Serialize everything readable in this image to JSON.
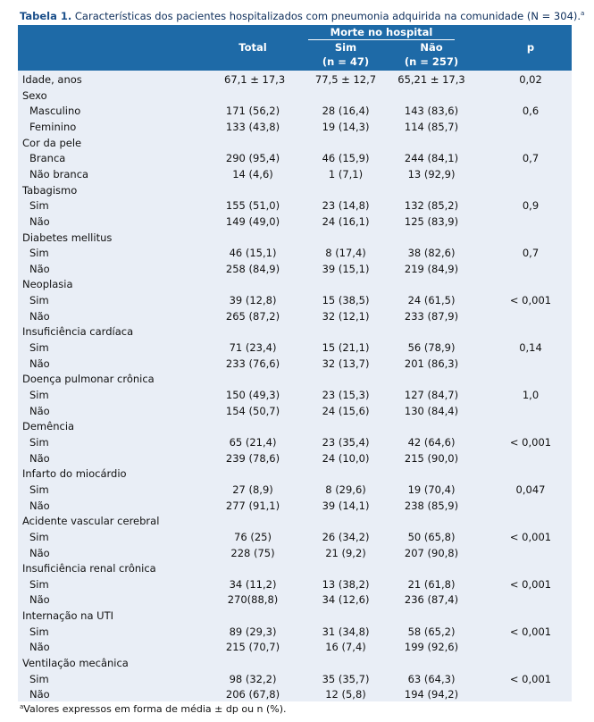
{
  "caption": {
    "label": "Tabela 1.",
    "text": " Características dos pacientes hospitalizados com pneumonia adquirida na comunidade (N = 304).",
    "mark": "a"
  },
  "header": {
    "group": "Morte no hospital",
    "total": "Total",
    "sim": "Sim",
    "sim_n": "(n  =  47)",
    "nao": "Não",
    "nao_n": "(n  =  257)",
    "p": "p"
  },
  "rows": [
    {
      "label": "Idade, anos",
      "total": "67,1 ± 17,3",
      "sim": "77,5 ± 12,7",
      "nao": "65,21 ± 17,3",
      "p": "0,02",
      "indent": false
    },
    {
      "label": "Sexo",
      "total": "",
      "sim": "",
      "nao": "",
      "p": "",
      "indent": false
    },
    {
      "label": "Masculino",
      "total": "171 (56,2)",
      "sim": "28 (16,4)",
      "nao": "143 (83,6)",
      "p": "0,6",
      "indent": true
    },
    {
      "label": "Feminino",
      "total": "133 (43,8)",
      "sim": "19 (14,3)",
      "nao": "114 (85,7)",
      "p": "",
      "indent": true
    },
    {
      "label": "Cor da pele",
      "total": "",
      "sim": "",
      "nao": "",
      "p": "",
      "indent": false
    },
    {
      "label": "Branca",
      "total": "290 (95,4)",
      "sim": "46 (15,9)",
      "nao": "244 (84,1)",
      "p": "0,7",
      "indent": true
    },
    {
      "label": "Não branca",
      "total": "14 (4,6)",
      "sim": "1 (7,1)",
      "nao": "13 (92,9)",
      "p": "",
      "indent": true
    },
    {
      "label": "Tabagismo",
      "total": "",
      "sim": "",
      "nao": "",
      "p": "",
      "indent": false
    },
    {
      "label": "Sim",
      "total": "155 (51,0)",
      "sim": "23 (14,8)",
      "nao": "132 (85,2)",
      "p": "0,9",
      "indent": true
    },
    {
      "label": "Não",
      "total": "149 (49,0)",
      "sim": "24 (16,1)",
      "nao": "125 (83,9)",
      "p": "",
      "indent": true
    },
    {
      "label": "Diabetes mellitus",
      "total": "",
      "sim": "",
      "nao": "",
      "p": "",
      "indent": false
    },
    {
      "label": "Sim",
      "total": "46 (15,1)",
      "sim": "8 (17,4)",
      "nao": "38 (82,6)",
      "p": "0,7",
      "indent": true
    },
    {
      "label": "Não",
      "total": "258 (84,9)",
      "sim": "39 (15,1)",
      "nao": "219 (84,9)",
      "p": "",
      "indent": true
    },
    {
      "label": "Neoplasia",
      "total": "",
      "sim": "",
      "nao": "",
      "p": "",
      "indent": false
    },
    {
      "label": "Sim",
      "total": "39 (12,8)",
      "sim": "15 (38,5)",
      "nao": "24 (61,5)",
      "p": "< 0,001",
      "indent": true
    },
    {
      "label": "Não",
      "total": "265 (87,2)",
      "sim": "32 (12,1)",
      "nao": "233 (87,9)",
      "p": "",
      "indent": true
    },
    {
      "label": "Insuficiência cardíaca",
      "total": "",
      "sim": "",
      "nao": "",
      "p": "",
      "indent": false
    },
    {
      "label": "Sim",
      "total": "71 (23,4)",
      "sim": "15 (21,1)",
      "nao": "56 (78,9)",
      "p": "0,14",
      "indent": true
    },
    {
      "label": "Não",
      "total": "233 (76,6)",
      "sim": "32 (13,7)",
      "nao": "201 (86,3)",
      "p": "",
      "indent": true
    },
    {
      "label": "Doença pulmonar crônica",
      "total": "",
      "sim": "",
      "nao": "",
      "p": "",
      "indent": false
    },
    {
      "label": "Sim",
      "total": "150 (49,3)",
      "sim": "23 (15,3)",
      "nao": "127 (84,7)",
      "p": "1,0",
      "indent": true
    },
    {
      "label": "Não",
      "total": "154 (50,7)",
      "sim": "24 (15,6)",
      "nao": "130 (84,4)",
      "p": "",
      "indent": true
    },
    {
      "label": "Demência",
      "total": "",
      "sim": "",
      "nao": "",
      "p": "",
      "indent": false
    },
    {
      "label": "Sim",
      "total": "65 (21,4)",
      "sim": "23 (35,4)",
      "nao": "42 (64,6)",
      "p": "< 0,001",
      "indent": true
    },
    {
      "label": "Não",
      "total": "239 (78,6)",
      "sim": "24 (10,0)",
      "nao": "215 (90,0)",
      "p": "",
      "indent": true
    },
    {
      "label": "Infarto do miocárdio",
      "total": "",
      "sim": "",
      "nao": "",
      "p": "",
      "indent": false
    },
    {
      "label": "Sim",
      "total": "27 (8,9)",
      "sim": "8 (29,6)",
      "nao": "19 (70,4)",
      "p": "0,047",
      "indent": true
    },
    {
      "label": "Não",
      "total": "277 (91,1)",
      "sim": "39 (14,1)",
      "nao": "238 (85,9)",
      "p": "",
      "indent": true
    },
    {
      "label": "Acidente vascular cerebral",
      "total": "",
      "sim": "",
      "nao": "",
      "p": "",
      "indent": false
    },
    {
      "label": "Sim",
      "total": "76 (25)",
      "sim": "26 (34,2)",
      "nao": "50 (65,8)",
      "p": "< 0,001",
      "indent": true
    },
    {
      "label": "Não",
      "total": "228 (75)",
      "sim": "21 (9,2)",
      "nao": "207 (90,8)",
      "p": "",
      "indent": true
    },
    {
      "label": "Insuficiência renal crônica",
      "total": "",
      "sim": "",
      "nao": "",
      "p": "",
      "indent": false
    },
    {
      "label": "Sim",
      "total": "34 (11,2)",
      "sim": "13 (38,2)",
      "nao": "21 (61,8)",
      "p": "< 0,001",
      "indent": true
    },
    {
      "label": "Não",
      "total": "270(88,8)",
      "sim": "34 (12,6)",
      "nao": "236 (87,4)",
      "p": "",
      "indent": true
    },
    {
      "label": "Internação na UTI",
      "total": "",
      "sim": "",
      "nao": "",
      "p": "",
      "indent": false
    },
    {
      "label": "Sim",
      "total": "89 (29,3)",
      "sim": "31 (34,8)",
      "nao": "58 (65,2)",
      "p": "< 0,001",
      "indent": true
    },
    {
      "label": "Não",
      "total": "215 (70,7)",
      "sim": "16 (7,4)",
      "nao": "199 (92,6)",
      "p": "",
      "indent": true
    },
    {
      "label": "Ventilação mecânica",
      "total": "",
      "sim": "",
      "nao": "",
      "p": "",
      "indent": false
    },
    {
      "label": "Sim",
      "total": "98 (32,2)",
      "sim": "35 (35,7)",
      "nao": "63 (64,3)",
      "p": "< 0,001",
      "indent": true
    },
    {
      "label": "Não",
      "total": "206 (67,8)",
      "sim": "12 (5,8)",
      "nao": "194 (94,2)",
      "p": "",
      "indent": true
    }
  ],
  "footnote": {
    "mark": "a",
    "text": "Valores expressos em forma de média ± dp ou n (%)."
  },
  "colors": {
    "header_bg": "#1e6aa7",
    "body_bg": "#e9eef6",
    "caption_label": "#1b4f8a"
  }
}
